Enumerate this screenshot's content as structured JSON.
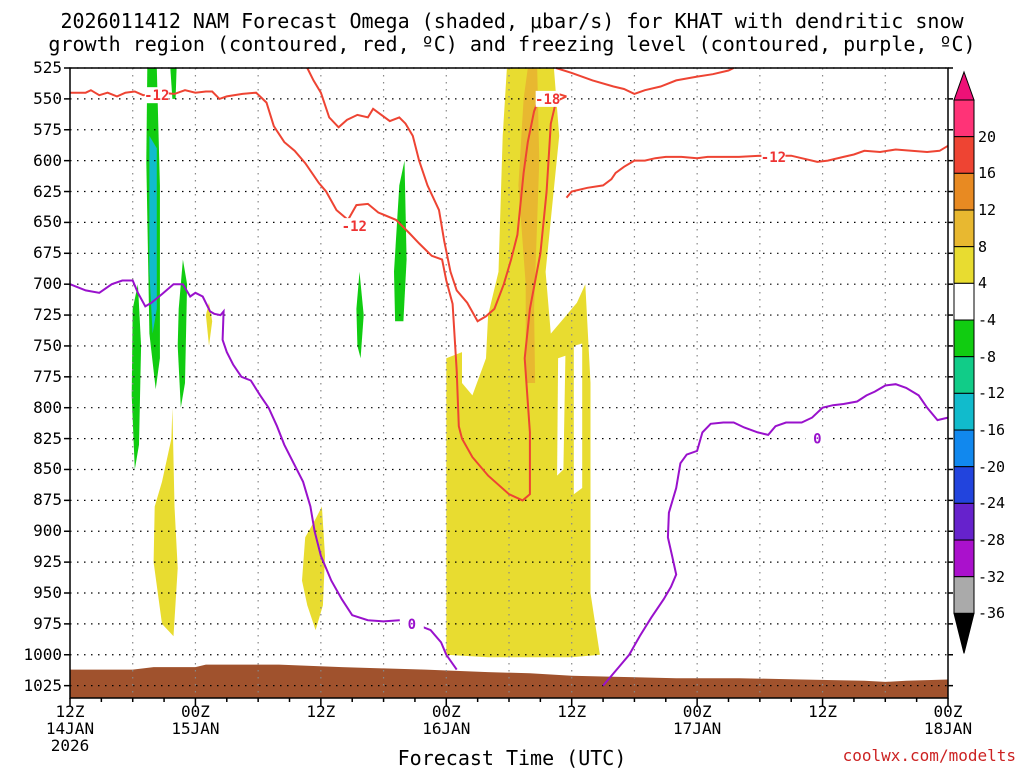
{
  "title_line1": "2026011412 NAM Forecast Omega (shaded, μbar/s) for KHAT with dendritic snow",
  "title_line2": "growth region (contoured, red, ºC) and freezing level (contoured, purple, ºC)",
  "xaxis_title": "Forecast Time (UTC)",
  "credit": "coolwx.com/modelts",
  "chart_data": {
    "type": "time-height contour (shaded + line contours)",
    "y_ticks_hPa": [
      "525",
      "550",
      "575",
      "600",
      "625",
      "650",
      "675",
      "700",
      "725",
      "750",
      "775",
      "800",
      "825",
      "850",
      "875",
      "900",
      "925",
      "950",
      "975",
      "1000",
      "1025"
    ],
    "y_range_hPa": [
      525,
      1035
    ],
    "x_range_hours": [
      0,
      84
    ],
    "x_ticks": [
      {
        "h": 0,
        "line1": "12Z",
        "line2": "14JAN",
        "line3": "2026"
      },
      {
        "h": 12,
        "line1": "00Z",
        "line2": "15JAN",
        "line3": ""
      },
      {
        "h": 24,
        "line1": "12Z",
        "line2": "",
        "line3": ""
      },
      {
        "h": 36,
        "line1": "00Z",
        "line2": "16JAN",
        "line3": ""
      },
      {
        "h": 48,
        "line1": "12Z",
        "line2": "",
        "line3": ""
      },
      {
        "h": 60,
        "line1": "00Z",
        "line2": "17JAN",
        "line3": ""
      },
      {
        "h": 72,
        "line1": "12Z",
        "line2": "",
        "line3": ""
      },
      {
        "h": 84,
        "line1": "00Z",
        "line2": "18JAN",
        "line3": ""
      }
    ],
    "colorbar": [
      {
        "label": "20",
        "color": "#ff3377"
      },
      {
        "label": "16",
        "color": "#ee4433"
      },
      {
        "label": "12",
        "color": "#e88a22"
      },
      {
        "label": "8",
        "color": "#e8b830"
      },
      {
        "label": "4",
        "color": "#e8dc30"
      },
      {
        "label": "-4",
        "color": "#ffffff"
      },
      {
        "label": "-8",
        "color": "#11cc11"
      },
      {
        "label": "-12",
        "color": "#11cc88"
      },
      {
        "label": "-16",
        "color": "#11bbcc"
      },
      {
        "label": "-20",
        "color": "#1188ee"
      },
      {
        "label": "-24",
        "color": "#2244dd"
      },
      {
        "label": "-28",
        "color": "#6622cc"
      },
      {
        "label": "-32",
        "color": "#aa11cc"
      },
      {
        "label": "-36",
        "color": "#aaaaaa"
      }
    ],
    "colorbar_overflow_top": "#ee1177",
    "colorbar_overflow_bottom": "#000000",
    "ground_color": "#a0522d",
    "contour_labels": [
      {
        "text": "-12",
        "color": "#ee3333",
        "h": 8.3,
        "p": 547
      },
      {
        "text": "-12",
        "color": "#ee3333",
        "h": 27.2,
        "p": 653
      },
      {
        "text": "-18",
        "color": "#ee3333",
        "h": 45.7,
        "p": 550
      },
      {
        "text": "-12",
        "color": "#ee3333",
        "h": 67.3,
        "p": 597
      },
      {
        "text": "0",
        "color": "#9911cc",
        "h": 32.7,
        "p": 975
      },
      {
        "text": "0",
        "color": "#9911cc",
        "h": 71.5,
        "p": 825
      }
    ]
  }
}
